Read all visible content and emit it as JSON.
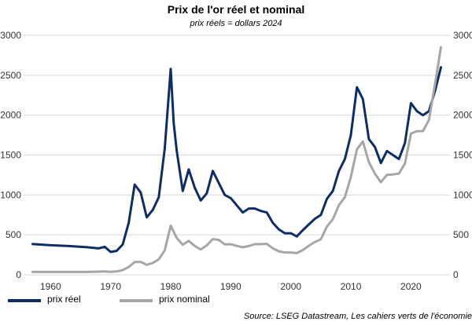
{
  "chart_data": {
    "type": "line",
    "title": "Prix de l'or réel et nominal",
    "subtitle": "prix réels = dollars 2024",
    "source": "Source: LSEG Datastream, Les cahiers verts de l'économie",
    "x_ticks": [
      1960,
      1970,
      1980,
      1990,
      2000,
      2010,
      2020
    ],
    "xlim": [
      1955.5,
      2026.5
    ],
    "left_axis": {
      "ylim": [
        0,
        3000
      ],
      "ticks": [
        0,
        500,
        1000,
        1500,
        2000,
        2500,
        3000
      ],
      "tick_labels": [
        "0",
        "500",
        "1000",
        "1500",
        "2000",
        "2500",
        "3000"
      ]
    },
    "right_axis": {
      "ylim": [
        0,
        3000
      ],
      "ticks": [
        0,
        500,
        1000,
        1500,
        2000,
        2500,
        3000
      ],
      "tick_labels": [
        "0",
        "500",
        "1000",
        "1500",
        "2000",
        "2500",
        "3000"
      ]
    },
    "grid": true,
    "legend_position": "bottom-left",
    "series": [
      {
        "name": "prix réel",
        "color": "#0d2d66",
        "axis": "left",
        "points": [
          [
            1957,
            385
          ],
          [
            1960,
            370
          ],
          [
            1963,
            360
          ],
          [
            1966,
            345
          ],
          [
            1968,
            330
          ],
          [
            1969,
            350
          ],
          [
            1970,
            285
          ],
          [
            1971,
            300
          ],
          [
            1972,
            380
          ],
          [
            1973,
            650
          ],
          [
            1974,
            1130
          ],
          [
            1975,
            1030
          ],
          [
            1976,
            720
          ],
          [
            1977,
            810
          ],
          [
            1978,
            970
          ],
          [
            1979,
            1580
          ],
          [
            1980,
            2580
          ],
          [
            1980.5,
            1900
          ],
          [
            1981,
            1550
          ],
          [
            1982,
            1050
          ],
          [
            1983,
            1320
          ],
          [
            1984,
            1090
          ],
          [
            1985,
            930
          ],
          [
            1986,
            1020
          ],
          [
            1987,
            1300
          ],
          [
            1988,
            1150
          ],
          [
            1989,
            1000
          ],
          [
            1990,
            960
          ],
          [
            1991,
            870
          ],
          [
            1992,
            780
          ],
          [
            1993,
            830
          ],
          [
            1994,
            830
          ],
          [
            1995,
            800
          ],
          [
            1996,
            780
          ],
          [
            1997,
            650
          ],
          [
            1998,
            570
          ],
          [
            1999,
            520
          ],
          [
            2000,
            520
          ],
          [
            2001,
            480
          ],
          [
            2002,
            560
          ],
          [
            2003,
            630
          ],
          [
            2004,
            700
          ],
          [
            2005,
            750
          ],
          [
            2006,
            950
          ],
          [
            2007,
            1050
          ],
          [
            2008,
            1300
          ],
          [
            2009,
            1450
          ],
          [
            2010,
            1750
          ],
          [
            2011,
            2350
          ],
          [
            2012,
            2200
          ],
          [
            2013,
            1700
          ],
          [
            2014,
            1600
          ],
          [
            2015,
            1400
          ],
          [
            2016,
            1550
          ],
          [
            2017,
            1500
          ],
          [
            2018,
            1450
          ],
          [
            2019,
            1650
          ],
          [
            2020,
            2150
          ],
          [
            2021,
            2050
          ],
          [
            2022,
            2000
          ],
          [
            2023,
            2050
          ],
          [
            2024,
            2300
          ],
          [
            2025,
            2600
          ]
        ]
      },
      {
        "name": "prix nominal",
        "color": "#a6a6a6",
        "axis": "right",
        "points": [
          [
            1957,
            35
          ],
          [
            1960,
            35
          ],
          [
            1963,
            35
          ],
          [
            1966,
            35
          ],
          [
            1968,
            39
          ],
          [
            1969,
            41
          ],
          [
            1970,
            36
          ],
          [
            1971,
            41
          ],
          [
            1972,
            58
          ],
          [
            1973,
            97
          ],
          [
            1974,
            159
          ],
          [
            1975,
            161
          ],
          [
            1976,
            125
          ],
          [
            1977,
            148
          ],
          [
            1978,
            193
          ],
          [
            1979,
            306
          ],
          [
            1980,
            615
          ],
          [
            1981,
            460
          ],
          [
            1982,
            376
          ],
          [
            1983,
            424
          ],
          [
            1984,
            361
          ],
          [
            1985,
            317
          ],
          [
            1986,
            368
          ],
          [
            1987,
            447
          ],
          [
            1988,
            437
          ],
          [
            1989,
            381
          ],
          [
            1990,
            383
          ],
          [
            1991,
            362
          ],
          [
            1992,
            344
          ],
          [
            1993,
            360
          ],
          [
            1994,
            384
          ],
          [
            1995,
            384
          ],
          [
            1996,
            388
          ],
          [
            1997,
            331
          ],
          [
            1998,
            294
          ],
          [
            1999,
            279
          ],
          [
            2000,
            279
          ],
          [
            2001,
            271
          ],
          [
            2002,
            310
          ],
          [
            2003,
            364
          ],
          [
            2004,
            409
          ],
          [
            2005,
            445
          ],
          [
            2006,
            604
          ],
          [
            2007,
            695
          ],
          [
            2008,
            872
          ],
          [
            2009,
            972
          ],
          [
            2010,
            1225
          ],
          [
            2011,
            1572
          ],
          [
            2012,
            1669
          ],
          [
            2013,
            1411
          ],
          [
            2014,
            1266
          ],
          [
            2015,
            1160
          ],
          [
            2016,
            1251
          ],
          [
            2017,
            1257
          ],
          [
            2018,
            1268
          ],
          [
            2019,
            1393
          ],
          [
            2020,
            1770
          ],
          [
            2021,
            1799
          ],
          [
            2022,
            1800
          ],
          [
            2023,
            1940
          ],
          [
            2024,
            2386
          ],
          [
            2025,
            2850
          ]
        ]
      }
    ]
  }
}
